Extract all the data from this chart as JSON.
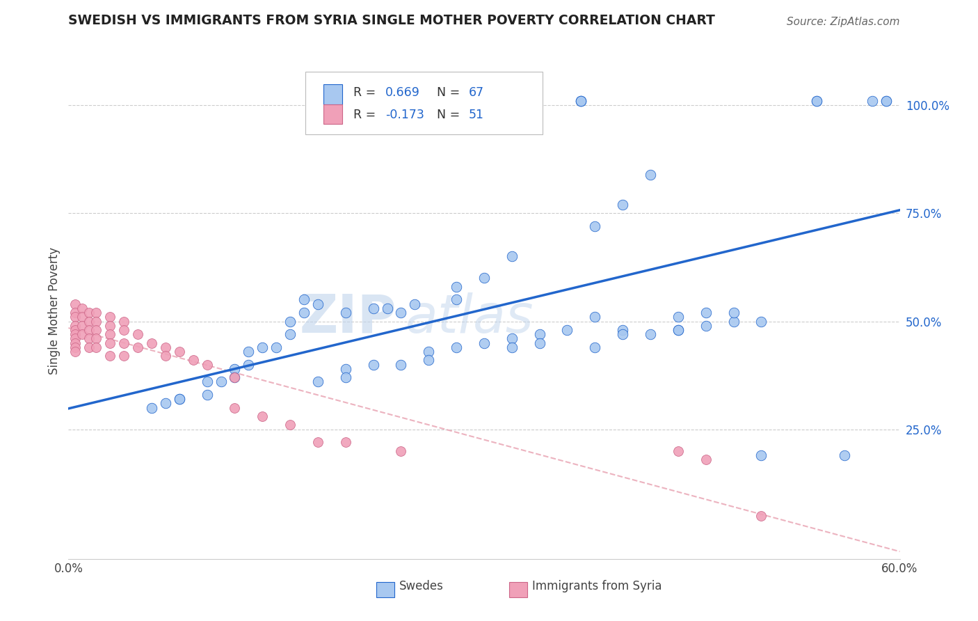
{
  "title": "SWEDISH VS IMMIGRANTS FROM SYRIA SINGLE MOTHER POVERTY CORRELATION CHART",
  "source": "Source: ZipAtlas.com",
  "ylabel": "Single Mother Poverty",
  "legend_label1": "Swedes",
  "legend_label2": "Immigrants from Syria",
  "R1": 0.669,
  "N1": 67,
  "R2": -0.173,
  "N2": 51,
  "xlim": [
    0.0,
    0.6
  ],
  "ylim": [
    -0.05,
    1.1
  ],
  "yticks": [
    0.25,
    0.5,
    0.75,
    1.0
  ],
  "ytick_labels": [
    "25.0%",
    "50.0%",
    "75.0%",
    "100.0%"
  ],
  "xtick_labels": [
    "0.0%",
    "60.0%"
  ],
  "color_blue": "#a8c8f0",
  "color_pink": "#f0a0b8",
  "color_line_blue": "#2266cc",
  "color_line_pink": "#e88898",
  "watermark_zip": "ZIP",
  "watermark_atlas": "atlas",
  "blue_x": [
    0.37,
    0.37,
    0.37,
    0.58,
    0.59,
    0.59,
    0.54,
    0.54,
    0.42,
    0.4,
    0.38,
    0.32,
    0.3,
    0.28,
    0.28,
    0.25,
    0.24,
    0.23,
    0.22,
    0.2,
    0.18,
    0.17,
    0.17,
    0.16,
    0.16,
    0.15,
    0.14,
    0.13,
    0.13,
    0.12,
    0.12,
    0.11,
    0.1,
    0.1,
    0.08,
    0.08,
    0.07,
    0.06,
    0.32,
    0.3,
    0.28,
    0.26,
    0.26,
    0.24,
    0.22,
    0.2,
    0.2,
    0.18,
    0.4,
    0.38,
    0.36,
    0.34,
    0.34,
    0.32,
    0.48,
    0.46,
    0.44,
    0.48,
    0.46,
    0.44,
    0.44,
    0.42,
    0.4,
    0.38,
    0.5,
    0.5,
    0.56
  ],
  "blue_y": [
    1.01,
    1.01,
    1.01,
    1.01,
    1.01,
    1.01,
    1.01,
    1.01,
    0.84,
    0.77,
    0.72,
    0.65,
    0.6,
    0.58,
    0.55,
    0.54,
    0.52,
    0.53,
    0.53,
    0.52,
    0.54,
    0.55,
    0.52,
    0.5,
    0.47,
    0.44,
    0.44,
    0.43,
    0.4,
    0.39,
    0.37,
    0.36,
    0.36,
    0.33,
    0.32,
    0.32,
    0.31,
    0.3,
    0.46,
    0.45,
    0.44,
    0.43,
    0.41,
    0.4,
    0.4,
    0.39,
    0.37,
    0.36,
    0.48,
    0.51,
    0.48,
    0.47,
    0.45,
    0.44,
    0.5,
    0.49,
    0.48,
    0.52,
    0.52,
    0.51,
    0.48,
    0.47,
    0.47,
    0.44,
    0.5,
    0.19,
    0.19
  ],
  "pink_x": [
    0.005,
    0.005,
    0.005,
    0.005,
    0.005,
    0.005,
    0.005,
    0.005,
    0.005,
    0.005,
    0.01,
    0.01,
    0.01,
    0.01,
    0.015,
    0.015,
    0.015,
    0.015,
    0.015,
    0.02,
    0.02,
    0.02,
    0.02,
    0.02,
    0.03,
    0.03,
    0.03,
    0.03,
    0.03,
    0.04,
    0.04,
    0.04,
    0.04,
    0.05,
    0.05,
    0.06,
    0.07,
    0.07,
    0.08,
    0.09,
    0.1,
    0.12,
    0.12,
    0.14,
    0.16,
    0.18,
    0.2,
    0.24,
    0.44,
    0.46,
    0.5
  ],
  "pink_y": [
    0.54,
    0.52,
    0.51,
    0.49,
    0.48,
    0.47,
    0.46,
    0.45,
    0.44,
    0.43,
    0.53,
    0.51,
    0.49,
    0.47,
    0.52,
    0.5,
    0.48,
    0.46,
    0.44,
    0.52,
    0.5,
    0.48,
    0.46,
    0.44,
    0.51,
    0.49,
    0.47,
    0.45,
    0.42,
    0.5,
    0.48,
    0.45,
    0.42,
    0.47,
    0.44,
    0.45,
    0.44,
    0.42,
    0.43,
    0.41,
    0.4,
    0.37,
    0.3,
    0.28,
    0.26,
    0.22,
    0.22,
    0.2,
    0.2,
    0.18,
    0.05
  ]
}
